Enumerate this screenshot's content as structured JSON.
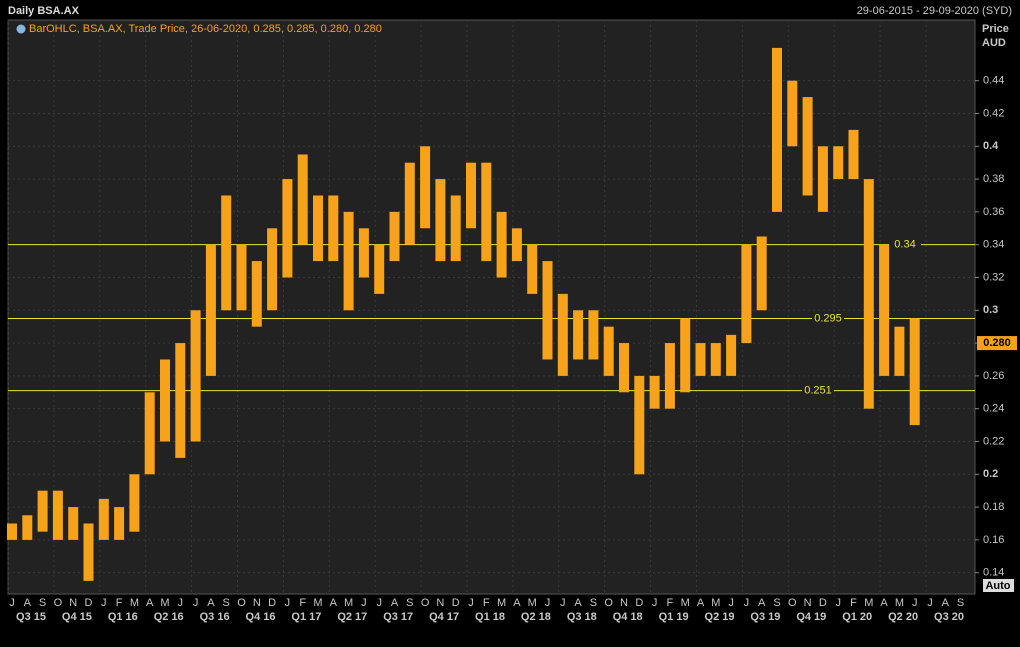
{
  "chart_data": {
    "type": "ohlc",
    "title": "Daily BSA.AX",
    "date_range": "29-06-2015 - 29-09-2020 (SYD)",
    "legend": "BarOHLC, BSA.AX, Trade Price, 26-06-2020, 0.285, 0.285, 0.280, 0.280",
    "y_label": "Price",
    "y_unit": "AUD",
    "scale_button": "Auto",
    "color": "#f7a21b",
    "categories": [
      "J",
      "A",
      "S",
      "O",
      "N",
      "D",
      "J",
      "F",
      "M",
      "A",
      "M",
      "J",
      "J",
      "A",
      "S",
      "O",
      "N",
      "D",
      "J",
      "F",
      "M",
      "A",
      "M",
      "J",
      "J",
      "A",
      "S",
      "O",
      "N",
      "D",
      "J",
      "F",
      "M",
      "A",
      "M",
      "J",
      "J",
      "A",
      "S",
      "O",
      "N",
      "D",
      "J",
      "F",
      "M",
      "A",
      "M",
      "J",
      "J",
      "A",
      "S",
      "O",
      "N",
      "D",
      "J",
      "F",
      "M",
      "A",
      "M",
      "J",
      "J",
      "A",
      "S"
    ],
    "quarters": [
      "Q3 15",
      "Q4 15",
      "Q1 16",
      "Q2 16",
      "Q3 16",
      "Q4 16",
      "Q1 17",
      "Q2 17",
      "Q3 17",
      "Q4 17",
      "Q1 18",
      "Q2 18",
      "Q3 18",
      "Q4 18",
      "Q1 19",
      "Q2 19",
      "Q3 19",
      "Q4 19",
      "Q1 20",
      "Q2 20",
      "Q3 20"
    ],
    "high": [
      0.17,
      0.175,
      0.19,
      0.19,
      0.18,
      0.17,
      0.185,
      0.18,
      0.2,
      0.25,
      0.27,
      0.28,
      0.3,
      0.34,
      0.37,
      0.34,
      0.33,
      0.35,
      0.38,
      0.395,
      0.37,
      0.37,
      0.36,
      0.35,
      0.34,
      0.36,
      0.39,
      0.4,
      0.38,
      0.37,
      0.39,
      0.39,
      0.36,
      0.35,
      0.34,
      0.33,
      0.31,
      0.3,
      0.3,
      0.29,
      0.28,
      0.26,
      0.26,
      0.28,
      0.295,
      0.28,
      0.28,
      0.285,
      0.34,
      0.345,
      0.46,
      0.44,
      0.43,
      0.4,
      0.4,
      0.41,
      0.38,
      0.34,
      0.29,
      0.295,
      null,
      null,
      null
    ],
    "low": [
      0.16,
      0.16,
      0.165,
      0.16,
      0.16,
      0.135,
      0.16,
      0.16,
      0.165,
      0.2,
      0.22,
      0.21,
      0.22,
      0.26,
      0.3,
      0.3,
      0.29,
      0.3,
      0.32,
      0.34,
      0.33,
      0.33,
      0.3,
      0.32,
      0.31,
      0.33,
      0.34,
      0.35,
      0.33,
      0.33,
      0.35,
      0.33,
      0.32,
      0.33,
      0.31,
      0.27,
      0.26,
      0.27,
      0.27,
      0.26,
      0.25,
      0.2,
      0.24,
      0.24,
      0.25,
      0.26,
      0.26,
      0.26,
      0.28,
      0.3,
      0.36,
      0.4,
      0.37,
      0.36,
      0.38,
      0.38,
      0.24,
      0.26,
      0.26,
      0.23,
      null,
      null,
      null
    ],
    "levels": [
      0.34,
      0.295,
      0.251
    ],
    "level_color": "#e6e632",
    "last_price": {
      "value": 0.28,
      "label": "0.280"
    },
    "ylim": [
      0.127,
      0.477
    ],
    "yticks": [
      0.14,
      0.16,
      0.18,
      0.2,
      0.22,
      0.24,
      0.26,
      0.28,
      0.3,
      0.32,
      0.34,
      0.36,
      0.38,
      0.4,
      0.42,
      0.44
    ],
    "grid": true
  }
}
